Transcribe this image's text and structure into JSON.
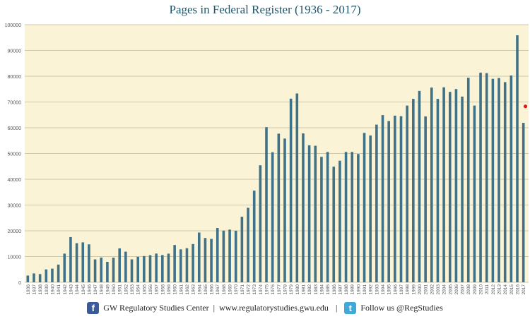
{
  "chart_data": {
    "type": "bar",
    "title": "Pages in Federal Register (1936 - 2017)",
    "xlabel": "",
    "ylabel": "",
    "ylim": [
      0,
      100000
    ],
    "yticks": [
      "0",
      "10000",
      "20000",
      "30000",
      "40000",
      "50000",
      "60000",
      "70000",
      "80000",
      "90000",
      "100000"
    ],
    "grid": true,
    "colors": {
      "bar": "#3f7189",
      "background": "#fbf3d6",
      "marker": "#e01b1b",
      "grid": "#cfc7ae"
    },
    "categories": [
      "1936",
      "1937",
      "1938",
      "1939",
      "1940",
      "1941",
      "1942",
      "1943",
      "1944",
      "1945",
      "1946",
      "1947",
      "1948",
      "1949",
      "1950",
      "1951",
      "1952",
      "1953",
      "1954",
      "1955",
      "1956",
      "1957",
      "1958",
      "1959",
      "1960",
      "1961",
      "1962",
      "1963",
      "1964",
      "1965",
      "1966",
      "1967",
      "1968",
      "1969",
      "1970",
      "1971",
      "1972",
      "1973",
      "1974",
      "1975",
      "1976",
      "1977",
      "1978",
      "1979",
      "1980",
      "1981",
      "1982",
      "1983",
      "1984",
      "1985",
      "1986",
      "1987",
      "1988",
      "1989",
      "1990",
      "1991",
      "1992",
      "1993",
      "1994",
      "1995",
      "1996",
      "1997",
      "1998",
      "1999",
      "2000",
      "2001",
      "2002",
      "2003",
      "2004",
      "2005",
      "2006",
      "2007",
      "2008",
      "2009",
      "2010",
      "2011",
      "2012",
      "2013",
      "2014",
      "2015",
      "2016",
      "2017"
    ],
    "values": [
      2620,
      3450,
      3194,
      5007,
      5307,
      6877,
      11134,
      17553,
      15194,
      15508,
      14736,
      8902,
      9608,
      7952,
      9562,
      13175,
      11896,
      8912,
      9910,
      10196,
      10528,
      11156,
      10579,
      11116,
      14479,
      12792,
      13226,
      14842,
      19304,
      17206,
      16850,
      21088,
      20068,
      20464,
      20036,
      25447,
      28924,
      35592,
      45422,
      60221,
      50500,
      57700,
      55800,
      71300,
      73300,
      57800,
      53200,
      53000,
      48700,
      50600,
      44900,
      47200,
      50600,
      50600,
      49800,
      58000,
      57000,
      61200,
      64900,
      62600,
      64700,
      64500,
      68600,
      71200,
      74300,
      64400,
      75600,
      71200,
      75700,
      73900,
      75000,
      72100,
      79400,
      68600,
      81400,
      81200,
      79000,
      79300,
      77700,
      80300,
      95900,
      61900
    ],
    "marker": {
      "value": 68300
    }
  },
  "footer": {
    "facebook_icon": "facebook-icon",
    "org": "GW Regulatory Studies Center",
    "sep1": "|",
    "url": "www.regulatorystudies.gwu.edu",
    "sep2": "|",
    "twitter_icon": "twitter-icon",
    "follow": "Follow us @RegStudies"
  }
}
